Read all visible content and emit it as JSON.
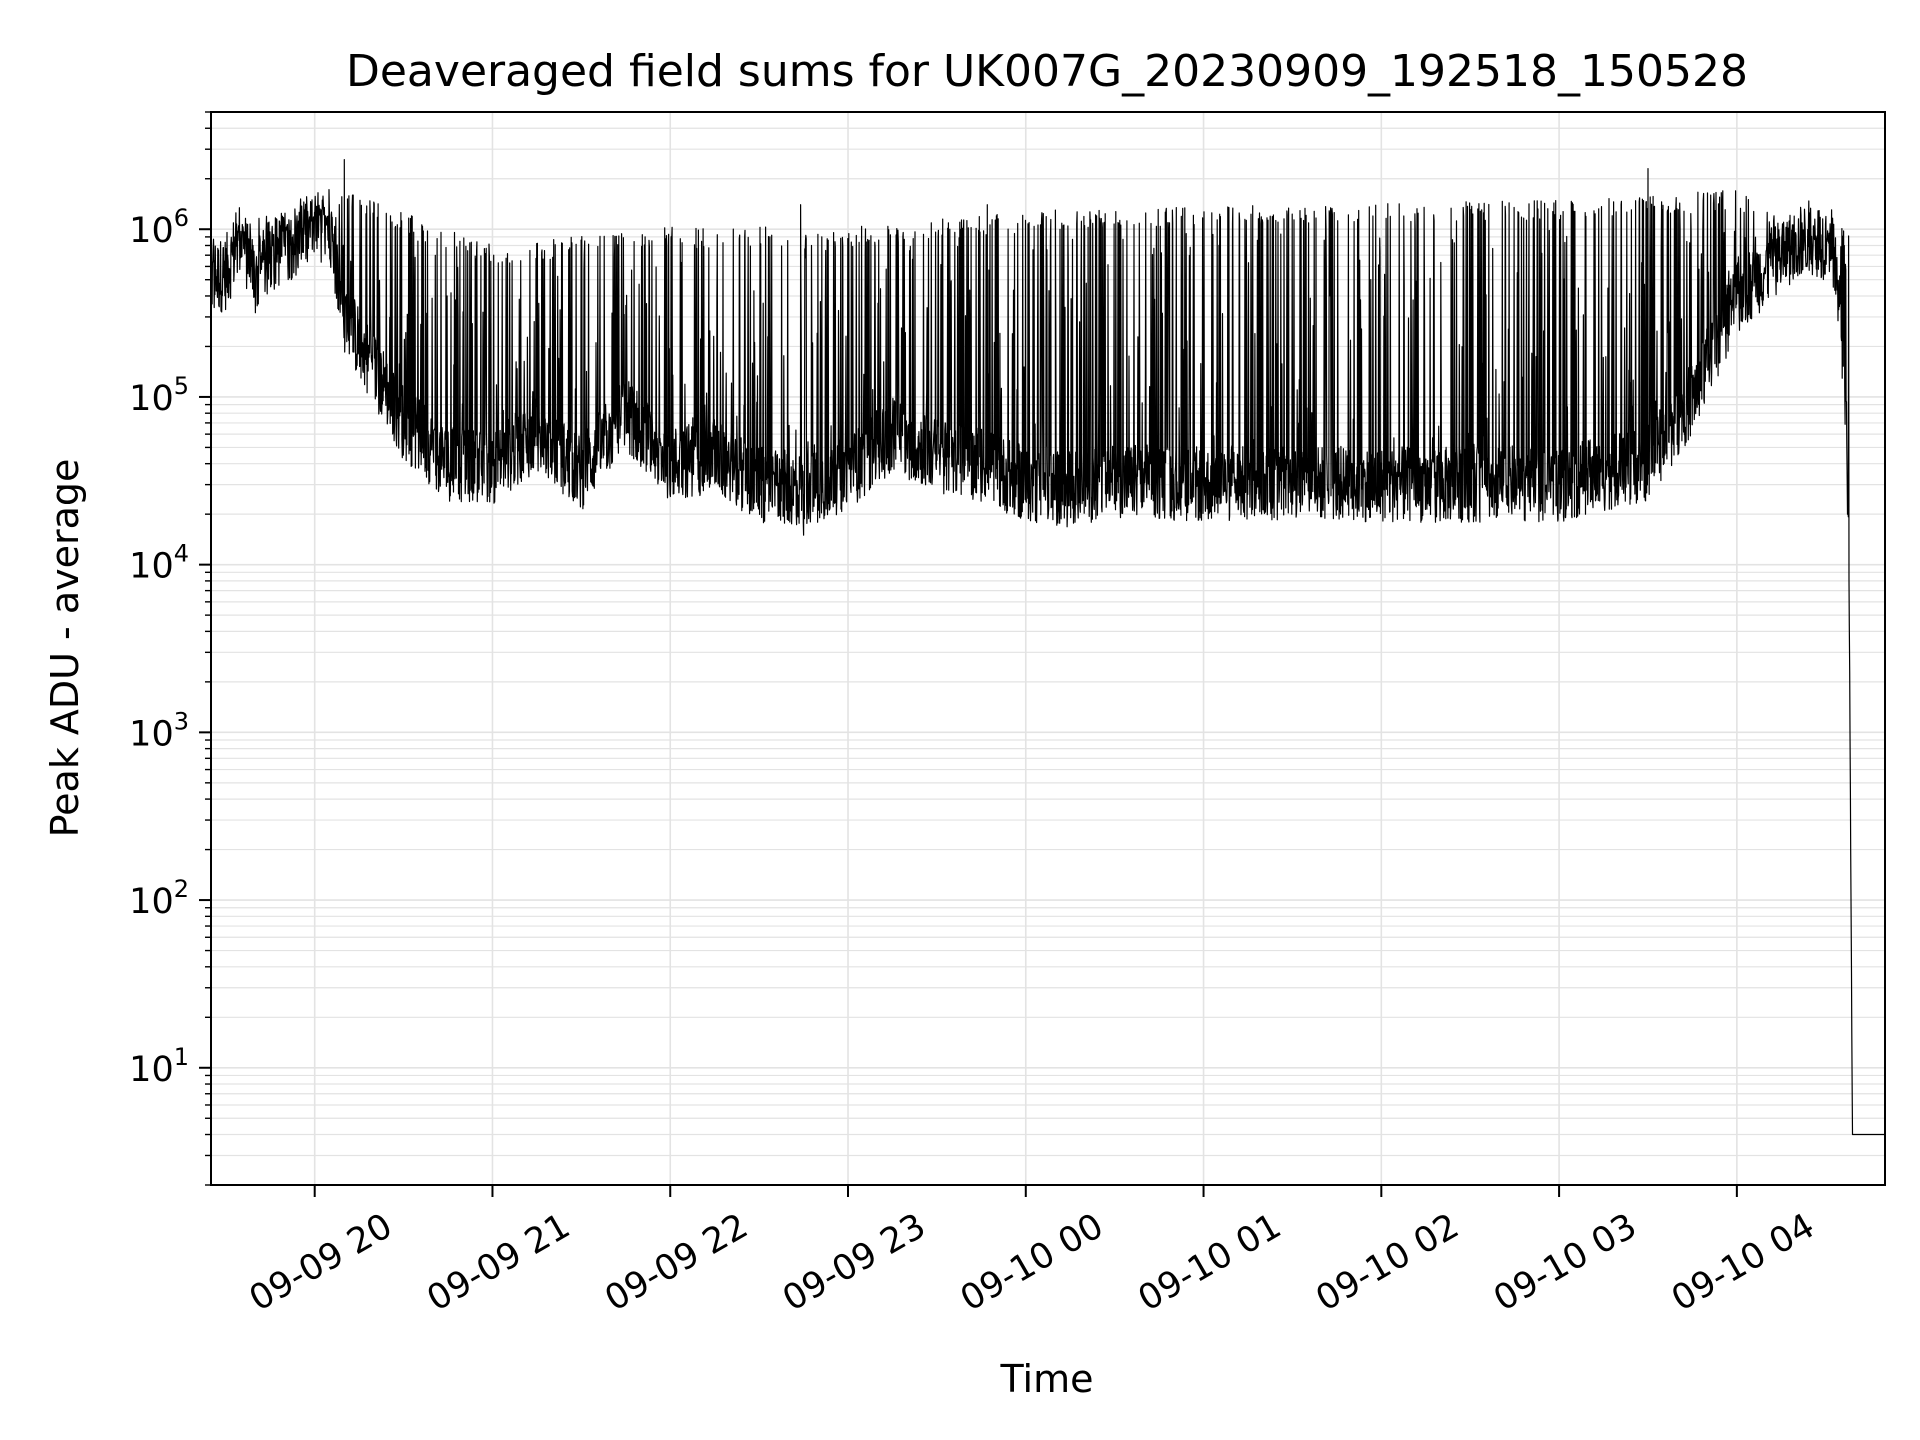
{
  "chart_data": {
    "type": "line",
    "title": "Deaveraged field sums for UK007G_20230909_192518_150528",
    "xlabel": "Time",
    "ylabel": "Peak ADU - average",
    "yscale": "log",
    "ylim": [
      2,
      5000000
    ],
    "xlim": [
      "09-09 19:25",
      "09-10 04:50"
    ],
    "grid": true,
    "legend": "none",
    "line_color": "#000000",
    "grid_color": "#e3e3e3",
    "x_ticks": [
      {
        "label": "09-09 20",
        "t": "09-09 20:00"
      },
      {
        "label": "09-09 21",
        "t": "09-09 21:00"
      },
      {
        "label": "09-09 22",
        "t": "09-09 22:00"
      },
      {
        "label": "09-09 23",
        "t": "09-09 23:00"
      },
      {
        "label": "09-10 00",
        "t": "09-10 00:00"
      },
      {
        "label": "09-10 01",
        "t": "09-10 01:00"
      },
      {
        "label": "09-10 02",
        "t": "09-10 02:00"
      },
      {
        "label": "09-10 03",
        "t": "09-10 03:00"
      },
      {
        "label": "09-10 04",
        "t": "09-10 04:00"
      }
    ],
    "y_ticks": [
      {
        "base": "10",
        "exp": "1",
        "value": 10
      },
      {
        "base": "10",
        "exp": "2",
        "value": 100
      },
      {
        "base": "10",
        "exp": "3",
        "value": 1000
      },
      {
        "base": "10",
        "exp": "4",
        "value": 10000
      },
      {
        "base": "10",
        "exp": "5",
        "value": 100000
      },
      {
        "base": "10",
        "exp": "6",
        "value": 1000000
      }
    ],
    "series": [
      {
        "baseline": [
          [
            "09-09 19:25",
            500000
          ],
          [
            "09-09 19:30",
            550000
          ],
          [
            "09-09 19:35",
            900000
          ],
          [
            "09-09 19:40",
            500000
          ],
          [
            "09-09 19:45",
            700000
          ],
          [
            "09-09 19:55",
            900000
          ],
          [
            "09-09 20:05",
            1100000
          ],
          [
            "09-09 20:10",
            300000
          ],
          [
            "09-09 20:20",
            150000
          ],
          [
            "09-09 20:30",
            70000
          ],
          [
            "09-09 20:45",
            40000
          ],
          [
            "09-09 21:00",
            38000
          ],
          [
            "09-09 21:15",
            60000
          ],
          [
            "09-09 21:30",
            35000
          ],
          [
            "09-09 21:45",
            80000
          ],
          [
            "09-09 22:00",
            40000
          ],
          [
            "09-09 22:15",
            45000
          ],
          [
            "09-09 22:30",
            30000
          ],
          [
            "09-09 22:45",
            28000
          ],
          [
            "09-09 23:00",
            35000
          ],
          [
            "09-09 23:15",
            60000
          ],
          [
            "09-09 23:30",
            45000
          ],
          [
            "09-09 23:45",
            40000
          ],
          [
            "09-10 00:00",
            30000
          ],
          [
            "09-10 00:15",
            28000
          ],
          [
            "09-10 00:30",
            32000
          ],
          [
            "09-10 01:00",
            30000
          ],
          [
            "09-10 01:30",
            31000
          ],
          [
            "09-10 02:00",
            30000
          ],
          [
            "09-10 02:30",
            30000
          ],
          [
            "09-10 03:00",
            30000
          ],
          [
            "09-10 03:30",
            40000
          ],
          [
            "09-10 03:45",
            100000
          ],
          [
            "09-10 04:00",
            400000
          ],
          [
            "09-10 04:15",
            700000
          ],
          [
            "09-10 04:25",
            900000
          ],
          [
            "09-10 04:32",
            800000
          ],
          [
            "09-10 04:35",
            300000
          ],
          [
            "09-10 04:37",
            80000
          ],
          [
            "09-10 04:38",
            4000
          ],
          [
            "09-10 04:39",
            4
          ],
          [
            "09-10 04:50",
            4
          ]
        ],
        "peak_envelope": [
          [
            "09-09 19:25",
            1000000
          ],
          [
            "09-09 20:00",
            1400000
          ],
          [
            "09-09 20:10",
            1500000
          ],
          [
            "09-09 21:00",
            700000
          ],
          [
            "09-09 22:00",
            900000
          ],
          [
            "09-09 23:00",
            900000
          ],
          [
            "09-10 00:00",
            1100000
          ],
          [
            "09-10 01:00",
            1200000
          ],
          [
            "09-10 02:00",
            1250000
          ],
          [
            "09-10 03:00",
            1300000
          ],
          [
            "09-10 04:00",
            1500000
          ],
          [
            "09-10 04:30",
            900000
          ]
        ],
        "spikes": [
          [
            "09-09 20:10",
            2600000
          ],
          [
            "09-09 23:47",
            1400000
          ],
          [
            "09-10 00:10",
            1300000
          ],
          [
            "09-10 03:30",
            2300000
          ],
          [
            "09-09 22:44",
            1400000
          ]
        ],
        "minimum": [
          "09-09 22:45",
          15000
        ]
      }
    ]
  }
}
